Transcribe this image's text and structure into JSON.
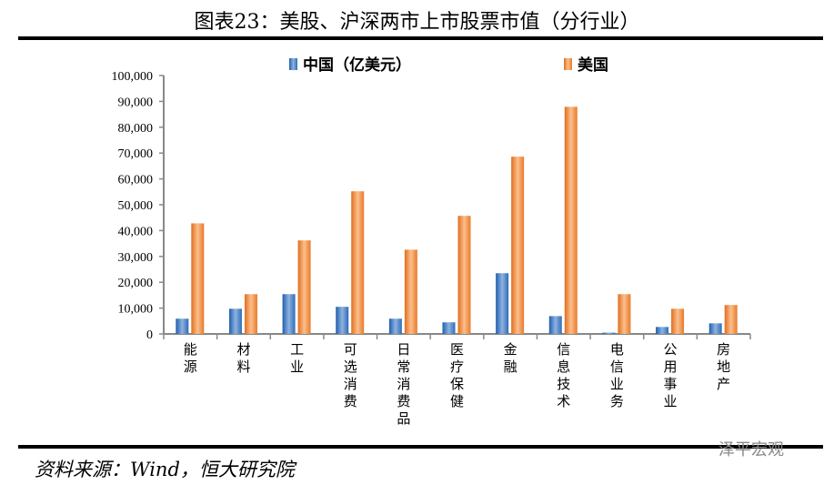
{
  "title": "图表23：美股、沪深两市上市股票市值（分行业）",
  "source": "资料来源：Wind，恒大研究院",
  "watermark": "泽平宏观",
  "chart_data": {
    "type": "bar",
    "categories": [
      "能源",
      "材料",
      "工业",
      "可选消费",
      "日常消费品",
      "医疗保健",
      "金融",
      "信息技术",
      "电信业务",
      "公用事业",
      "房地产"
    ],
    "series": [
      {
        "name": "中国（亿美元）",
        "color": "#2E6DB8",
        "values": [
          5900,
          9750,
          15400,
          10500,
          5900,
          4500,
          23500,
          6900,
          500,
          2700,
          4100
        ]
      },
      {
        "name": "美国",
        "color": "#F08B3E",
        "values": [
          42800,
          15400,
          36200,
          55200,
          32600,
          45700,
          68600,
          87900,
          15400,
          9750,
          11200
        ]
      }
    ],
    "ylim": [
      0,
      100000
    ],
    "yticks": [
      "0",
      "10,000",
      "20,000",
      "30,000",
      "40,000",
      "50,000",
      "60,000",
      "70,000",
      "80,000",
      "90,000",
      "100,000"
    ],
    "grid": false,
    "legend": "top"
  }
}
